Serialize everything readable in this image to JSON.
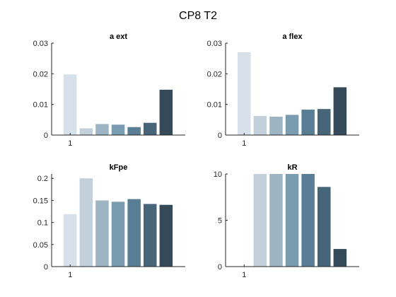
{
  "figure": {
    "suptitle": "CP8 T2"
  },
  "colors": [
    "#d8e1e9",
    "#c1d0db",
    "#9cb4c4",
    "#7a9cb0",
    "#587e96",
    "#466579",
    "#344a59"
  ],
  "chart_data": [
    {
      "type": "bar",
      "title": "a ext",
      "xlabel": "",
      "ylabel": "",
      "ylim": [
        0,
        0.03
      ],
      "yticks": [
        0,
        0.01,
        0.02,
        0.03
      ],
      "ytick_labels": [
        "0",
        "0.01",
        "0.02",
        "0.03"
      ],
      "xtick_labels": [
        "1"
      ],
      "grid": false,
      "values": [
        0.0198,
        0.0022,
        0.0036,
        0.0034,
        0.0026,
        0.004,
        0.0148
      ]
    },
    {
      "type": "bar",
      "title": "a flex",
      "xlabel": "",
      "ylabel": "",
      "ylim": [
        0,
        0.03
      ],
      "yticks": [
        0,
        0.01,
        0.02,
        0.03
      ],
      "ytick_labels": [
        "0",
        "0.01",
        "0.02",
        "0.03"
      ],
      "xtick_labels": [
        "1"
      ],
      "grid": false,
      "values": [
        0.027,
        0.0062,
        0.006,
        0.0066,
        0.0083,
        0.0085,
        0.0156
      ]
    },
    {
      "type": "bar",
      "title": "kFpe",
      "xlabel": "",
      "ylabel": "",
      "ylim": [
        0,
        0.21
      ],
      "yticks": [
        0,
        0.05,
        0.1,
        0.15,
        0.2
      ],
      "ytick_labels": [
        "0",
        "0.05",
        "0.1",
        "0.15",
        "0.2"
      ],
      "xtick_labels": [
        "1"
      ],
      "grid": false,
      "values": [
        0.119,
        0.2,
        0.15,
        0.147,
        0.153,
        0.142,
        0.14
      ]
    },
    {
      "type": "bar",
      "title": "kR",
      "xlabel": "",
      "ylabel": "",
      "ylim": [
        0,
        10
      ],
      "yticks": [
        0,
        5,
        10
      ],
      "ytick_labels": [
        "0",
        "5",
        "10"
      ],
      "xtick_labels": [
        "1"
      ],
      "grid": false,
      "values": [
        0,
        10,
        10,
        10,
        10,
        8.6,
        1.9
      ]
    }
  ]
}
